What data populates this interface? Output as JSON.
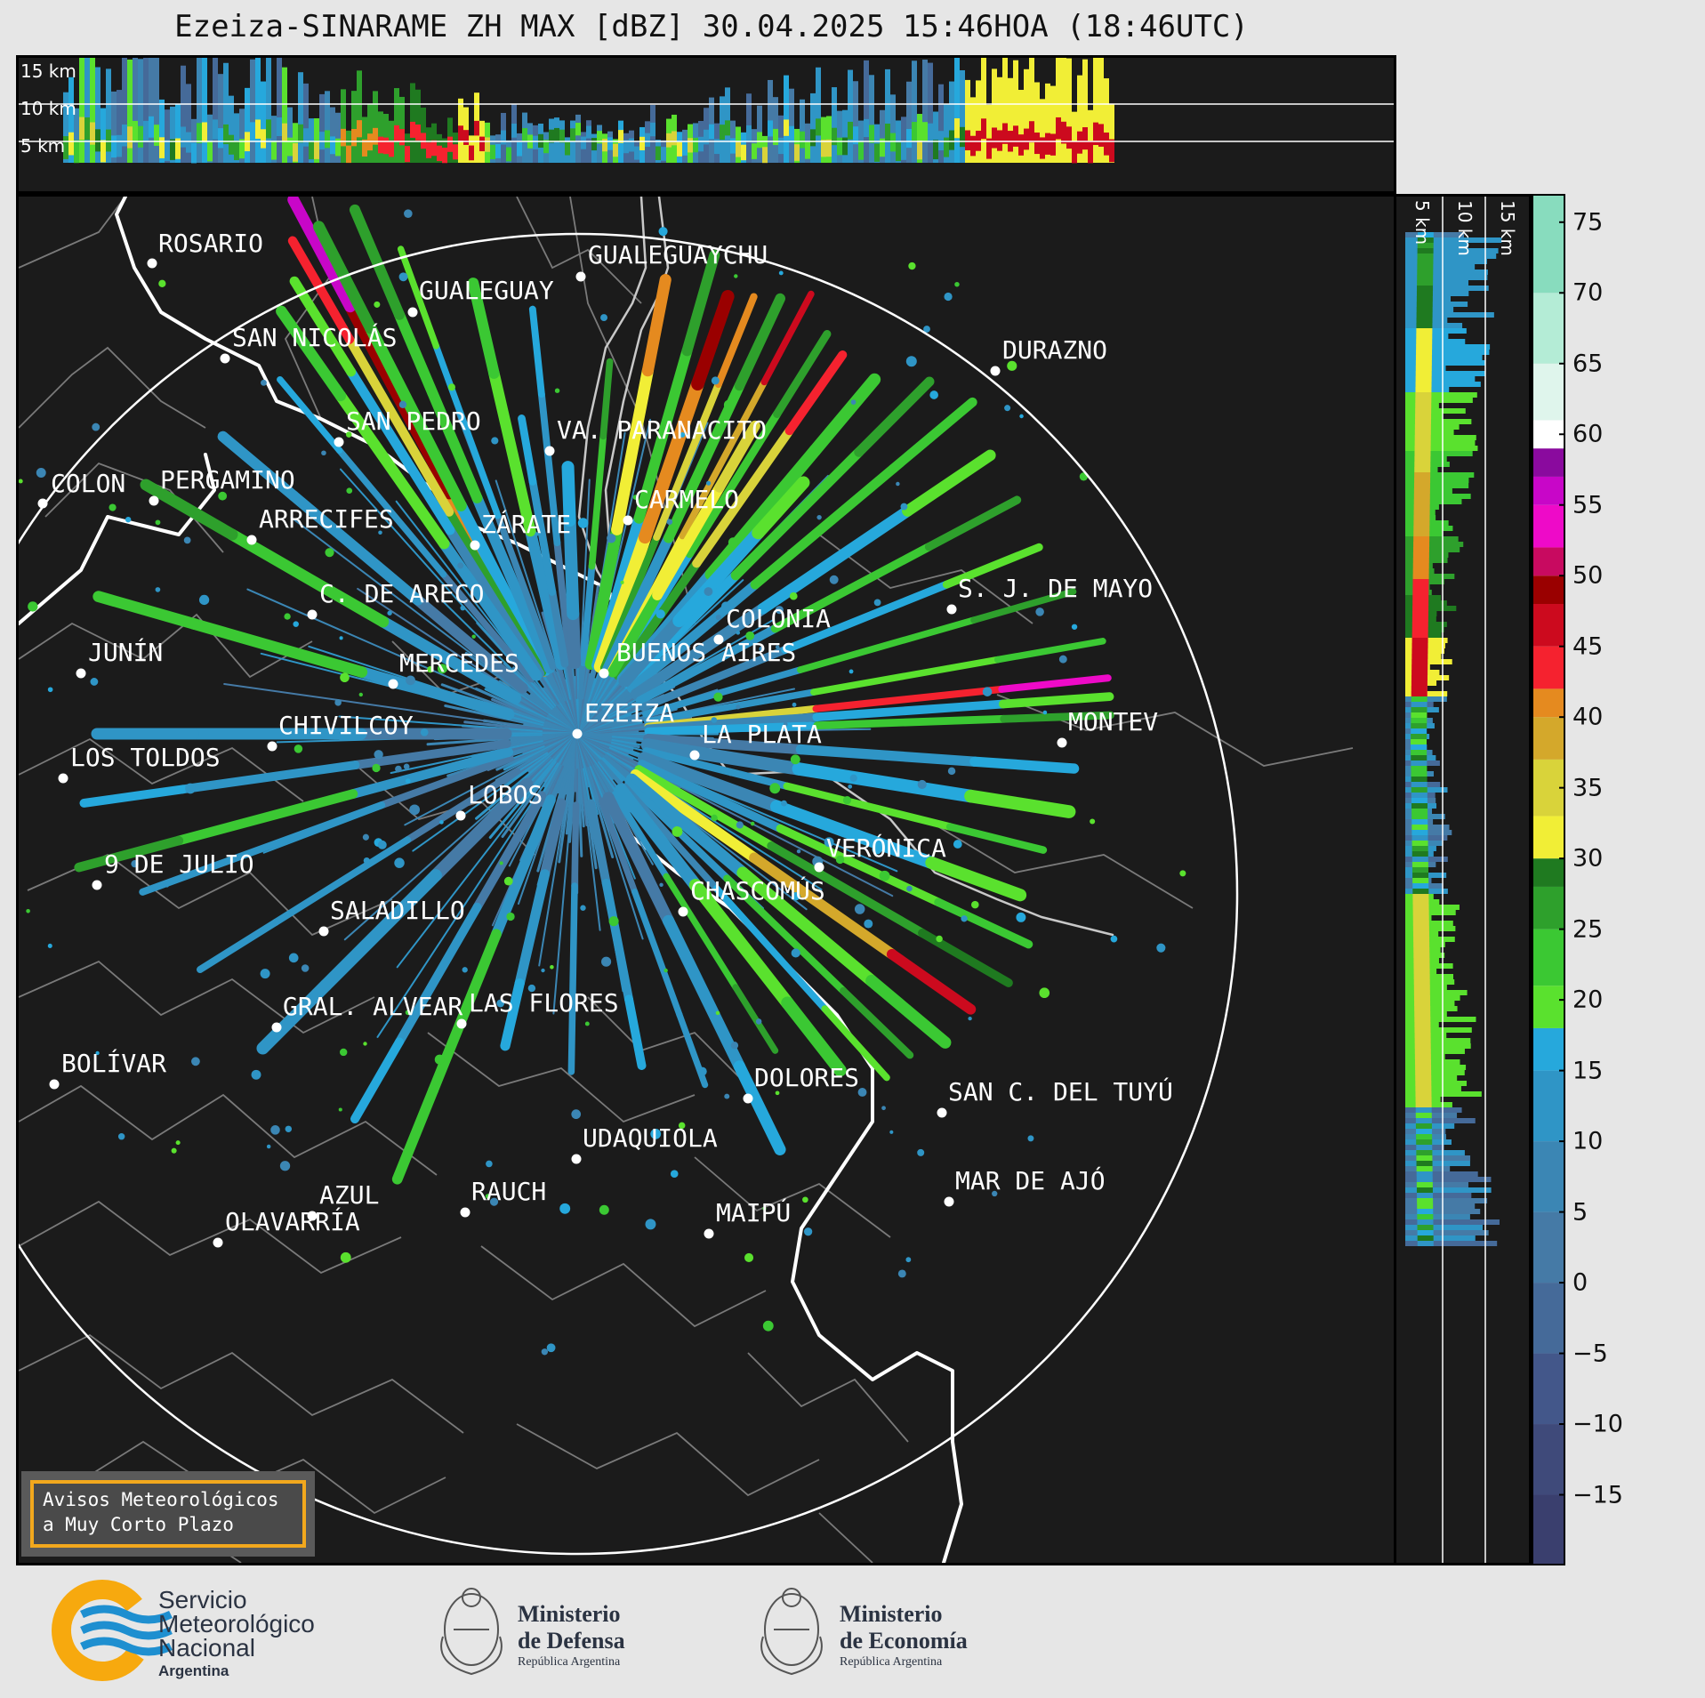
{
  "title": "Ezeiza-SINARAME ZH MAX [dBZ] 30.04.2025 15:46HOA (18:46UTC)",
  "top_panel_labels": [
    "15 km",
    "10 km",
    "5 km"
  ],
  "side_panel_labels": [
    "5 km",
    "10 km",
    "15 km"
  ],
  "cities": [
    {
      "name": "ROSARIO"
    },
    {
      "name": "GUALEGUAYCHU"
    },
    {
      "name": "GUALEGUAY"
    },
    {
      "name": "SAN NICOLÁS"
    },
    {
      "name": "DURAZNO"
    },
    {
      "name": "SAN PEDRO"
    },
    {
      "name": "VA. PARANACITO"
    },
    {
      "name": "COLON"
    },
    {
      "name": "PERGAMINO"
    },
    {
      "name": "CARMELO"
    },
    {
      "name": "ARRECIFES"
    },
    {
      "name": "ZÁRATE"
    },
    {
      "name": "C. DE ARECO"
    },
    {
      "name": "S. J. DE MAYO"
    },
    {
      "name": "COLONIA"
    },
    {
      "name": "JUNÍN"
    },
    {
      "name": "BUENOS AIRES"
    },
    {
      "name": "MERCEDES"
    },
    {
      "name": "EZEIZA"
    },
    {
      "name": "MONTEV"
    },
    {
      "name": "CHIVILCOY"
    },
    {
      "name": "LA PLATA"
    },
    {
      "name": "LOS TOLDOS"
    },
    {
      "name": "LOBOS"
    },
    {
      "name": "VERÓNICA"
    },
    {
      "name": "9 DE JULIO"
    },
    {
      "name": "CHASCOMÚS"
    },
    {
      "name": "SALADILLO"
    },
    {
      "name": "GRAL. ALVEAR"
    },
    {
      "name": "LAS FLORES"
    },
    {
      "name": "BOLÍVAR"
    },
    {
      "name": "DOLORES"
    },
    {
      "name": "SAN C. DEL TUYÚ"
    },
    {
      "name": "UDAQUIOLA"
    },
    {
      "name": "AZUL"
    },
    {
      "name": "RAUCH"
    },
    {
      "name": "MAR DE AJÓ"
    },
    {
      "name": "OLAVARRÍA"
    },
    {
      "name": "MAIPÚ"
    }
  ],
  "colorbar": {
    "unit": "dBZ",
    "min": -20,
    "max": 77,
    "ticks": [
      75,
      70,
      65,
      60,
      55,
      50,
      45,
      40,
      35,
      30,
      25,
      20,
      15,
      10,
      5,
      0,
      -5,
      -10,
      -15
    ],
    "tick_labels": [
      "75",
      "70",
      "65",
      "60",
      "55",
      "50",
      "45",
      "40",
      "35",
      "30",
      "25",
      "20",
      "15",
      "10",
      "5",
      "0",
      "−5",
      "−10",
      "−15"
    ],
    "bands": [
      {
        "from": -20,
        "to": -15,
        "color": "#3a3f6e"
      },
      {
        "from": -15,
        "to": -10,
        "color": "#3f4a7a"
      },
      {
        "from": -10,
        "to": -5,
        "color": "#43578a"
      },
      {
        "from": -5,
        "to": 0,
        "color": "#456a99"
      },
      {
        "from": 0,
        "to": 5,
        "color": "#457aa6"
      },
      {
        "from": 5,
        "to": 10,
        "color": "#3b86b4"
      },
      {
        "from": 10,
        "to": 15,
        "color": "#2f95c6"
      },
      {
        "from": 15,
        "to": 18,
        "color": "#26a8dc"
      },
      {
        "from": 18,
        "to": 21,
        "color": "#5ae12e"
      },
      {
        "from": 21,
        "to": 25,
        "color": "#3bc833"
      },
      {
        "from": 25,
        "to": 28,
        "color": "#2ea02c"
      },
      {
        "from": 28,
        "to": 30,
        "color": "#1f7a20"
      },
      {
        "from": 30,
        "to": 33,
        "color": "#f1ee36"
      },
      {
        "from": 33,
        "to": 37,
        "color": "#d9d33a"
      },
      {
        "from": 37,
        "to": 40,
        "color": "#d4a82b"
      },
      {
        "from": 40,
        "to": 42,
        "color": "#e58a1f"
      },
      {
        "from": 42,
        "to": 45,
        "color": "#f5222f"
      },
      {
        "from": 45,
        "to": 48,
        "color": "#cc0a1e"
      },
      {
        "from": 48,
        "to": 50,
        "color": "#9a0000"
      },
      {
        "from": 50,
        "to": 52,
        "color": "#c80a60"
      },
      {
        "from": 52,
        "to": 55,
        "color": "#ee0ac8"
      },
      {
        "from": 55,
        "to": 57,
        "color": "#c806c8"
      },
      {
        "from": 57,
        "to": 59,
        "color": "#8a0a9e"
      },
      {
        "from": 59,
        "to": 61,
        "color": "#ffffff"
      },
      {
        "from": 61,
        "to": 65,
        "color": "#dff5ec"
      },
      {
        "from": 65,
        "to": 70,
        "color": "#b4ecd6"
      },
      {
        "from": 70,
        "to": 77,
        "color": "#88dcbe"
      }
    ]
  },
  "avisos": {
    "line1": "Avisos Meteorológicos",
    "line2": "a Muy Corto Plazo"
  },
  "logos": {
    "smn": {
      "line1": "Servicio",
      "line2": "Meteorológico",
      "line3": "Nacional",
      "line4": "Argentina"
    },
    "defensa": {
      "line1": "Ministerio",
      "line2": "de Defensa",
      "line3": "República Argentina"
    },
    "economia": {
      "line1": "Ministerio",
      "line2": "de Economía",
      "line3": "República Argentina"
    }
  },
  "colors": {
    "background": "#1b1b1b",
    "page": "#e6e6e6",
    "accent": "#f2a81d",
    "smn_blue": "#1e8fd0"
  }
}
